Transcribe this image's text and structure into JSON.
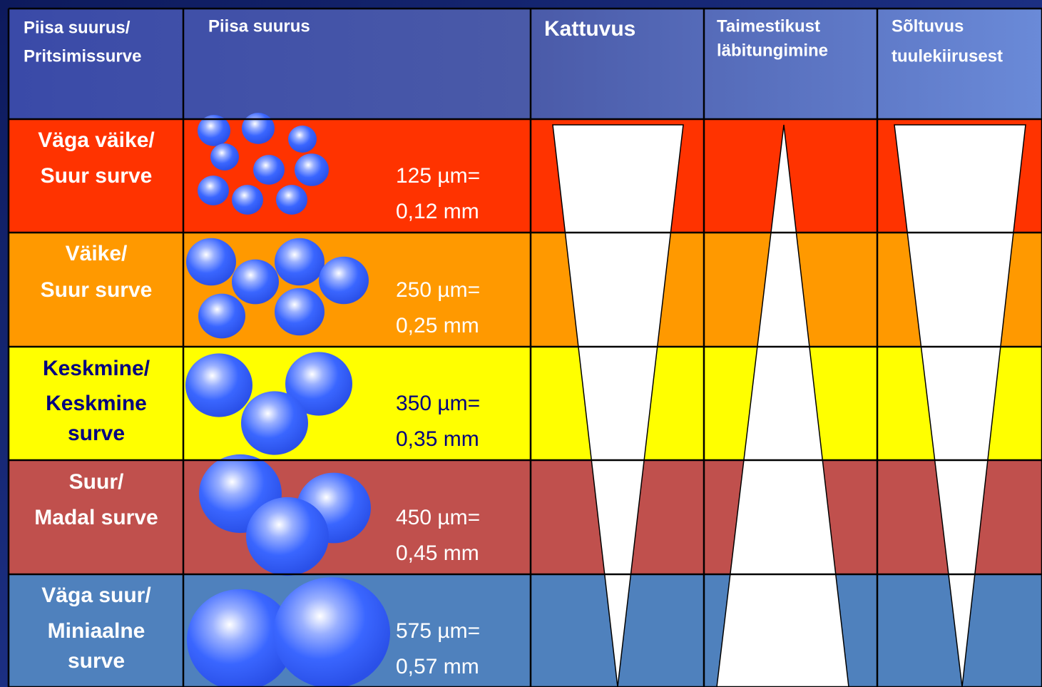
{
  "header": {
    "cells": [
      [
        "Piisa suurus/",
        "Pritsimissurve"
      ],
      [
        "Piisa suurus"
      ],
      [
        "Kattuvus"
      ],
      [
        "Taimestikust",
        "läbitungimine"
      ],
      [
        "Sõltuvus",
        "tuulekiirusest"
      ]
    ]
  },
  "rows": [
    {
      "label": [
        "Väga väike/",
        "Suur surve"
      ],
      "size": [
        "125 µm=",
        "0,12 mm"
      ]
    },
    {
      "label": [
        "Väike/",
        "Suur surve"
      ],
      "size": [
        "250 µm=",
        "0,25 mm"
      ]
    },
    {
      "label": [
        "Keskmine/",
        "Keskmine",
        "surve"
      ],
      "size": [
        "350 µm=",
        "0,35 mm"
      ]
    },
    {
      "label": [
        "Suur/",
        "Madal surve"
      ],
      "size": [
        "450 µm=",
        "0,45 mm"
      ]
    },
    {
      "label": [
        "Väga suur/",
        "Miniaalne",
        "surve"
      ],
      "size": [
        "575 µm=",
        "0,57 mm"
      ]
    }
  ]
}
